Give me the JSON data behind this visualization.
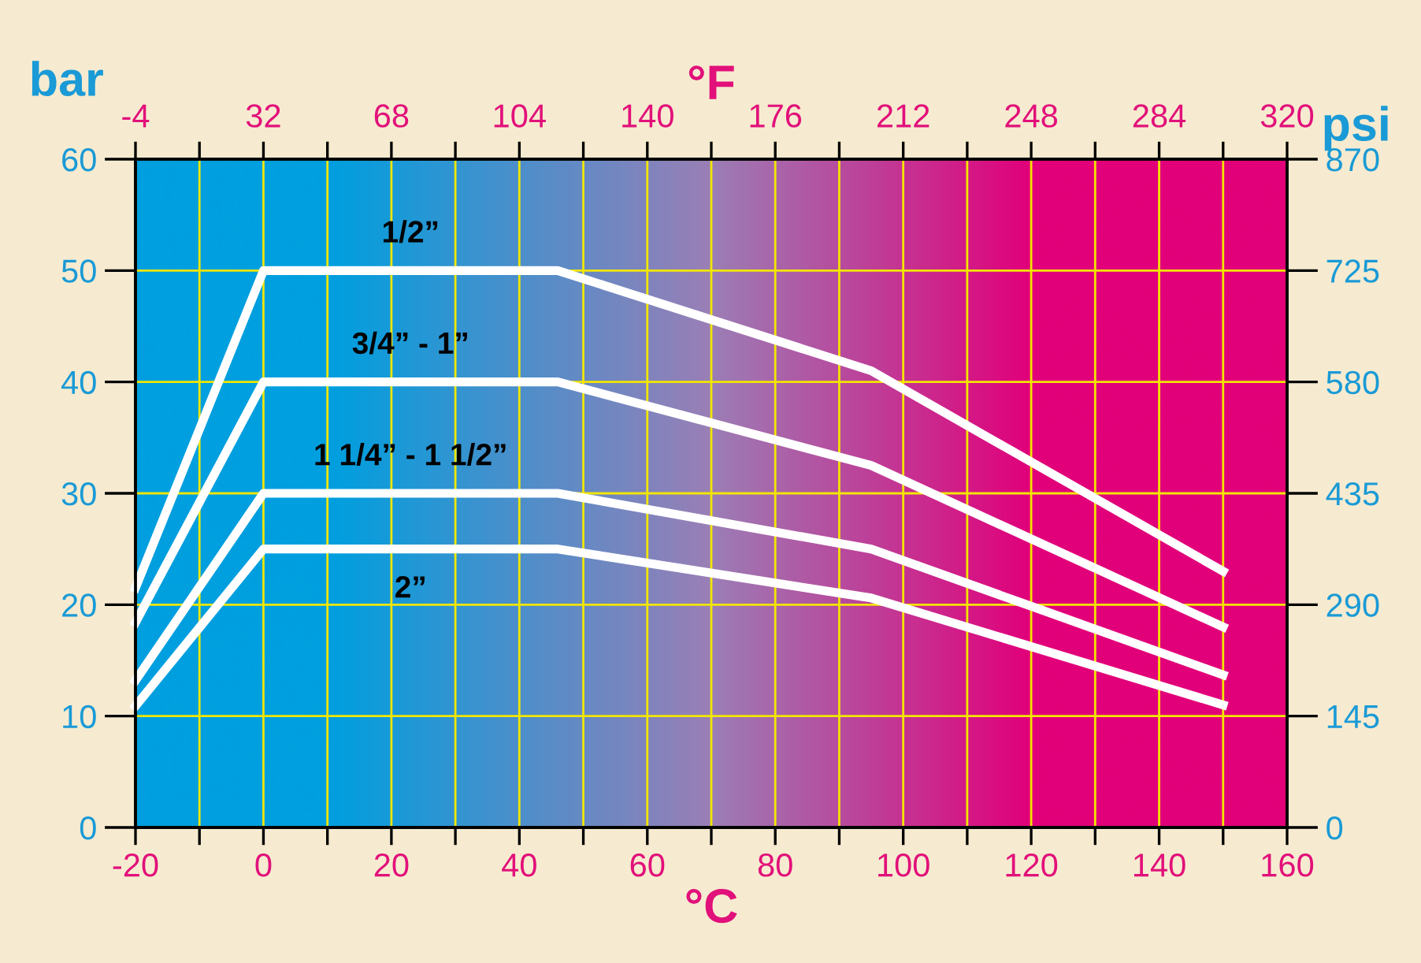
{
  "chart_data": {
    "type": "line",
    "xlabel": "°C",
    "x2label": "°F",
    "ylabel": "bar",
    "y2label": "psi",
    "x": [
      -20,
      0,
      46,
      95,
      150
    ],
    "series": [
      {
        "name": "1/2”",
        "color": "#ffffff",
        "values": [
          21.5,
          50,
          50,
          41,
          23
        ]
      },
      {
        "name": "3/4” - 1”",
        "color": "#ffffff",
        "values": [
          18.4,
          40,
          40,
          32.5,
          18
        ]
      },
      {
        "name": "1 1/4” - 1 1/2”",
        "color": "#ffffff",
        "values": [
          13.2,
          30,
          30,
          25,
          13.7
        ]
      },
      {
        "name": "2”",
        "color": "#ffffff",
        "values": [
          10.9,
          25,
          25,
          20.6,
          11
        ]
      }
    ],
    "xlim": [
      -20,
      160
    ],
    "xticks": [
      -20,
      {
        "value": -10,
        "label": null
      },
      0,
      {
        "value": 10,
        "label": null
      },
      20,
      {
        "value": 30,
        "label": null
      },
      40,
      {
        "value": 50,
        "label": null
      },
      60,
      {
        "value": 70,
        "label": null
      },
      80,
      {
        "value": 90,
        "label": null
      },
      100,
      {
        "value": 110,
        "label": null
      },
      120,
      {
        "value": 130,
        "label": null
      },
      140,
      {
        "value": 150,
        "label": null
      },
      160
    ],
    "x2lim": [
      -4,
      320
    ],
    "x2ticks": [
      -4,
      {
        "value": 14,
        "label": null
      },
      32,
      {
        "value": 50,
        "label": null
      },
      68,
      {
        "value": 86,
        "label": null
      },
      104,
      {
        "value": 122,
        "label": null
      },
      140,
      {
        "value": 158,
        "label": null
      },
      176,
      {
        "value": 194,
        "label": null
      },
      212,
      {
        "value": 230,
        "label": null
      },
      248,
      {
        "value": 266,
        "label": null
      },
      284,
      {
        "value": 302,
        "label": null
      },
      320
    ],
    "ylim": [
      0,
      60
    ],
    "yticks": [
      0,
      10,
      20,
      30,
      40,
      50,
      60
    ],
    "y2lim": [
      0,
      870
    ],
    "y2ticks": [
      0,
      145,
      290,
      435,
      580,
      725,
      870
    ],
    "grid": true,
    "legend": false,
    "marker": "none",
    "line_style": "solid"
  }
}
